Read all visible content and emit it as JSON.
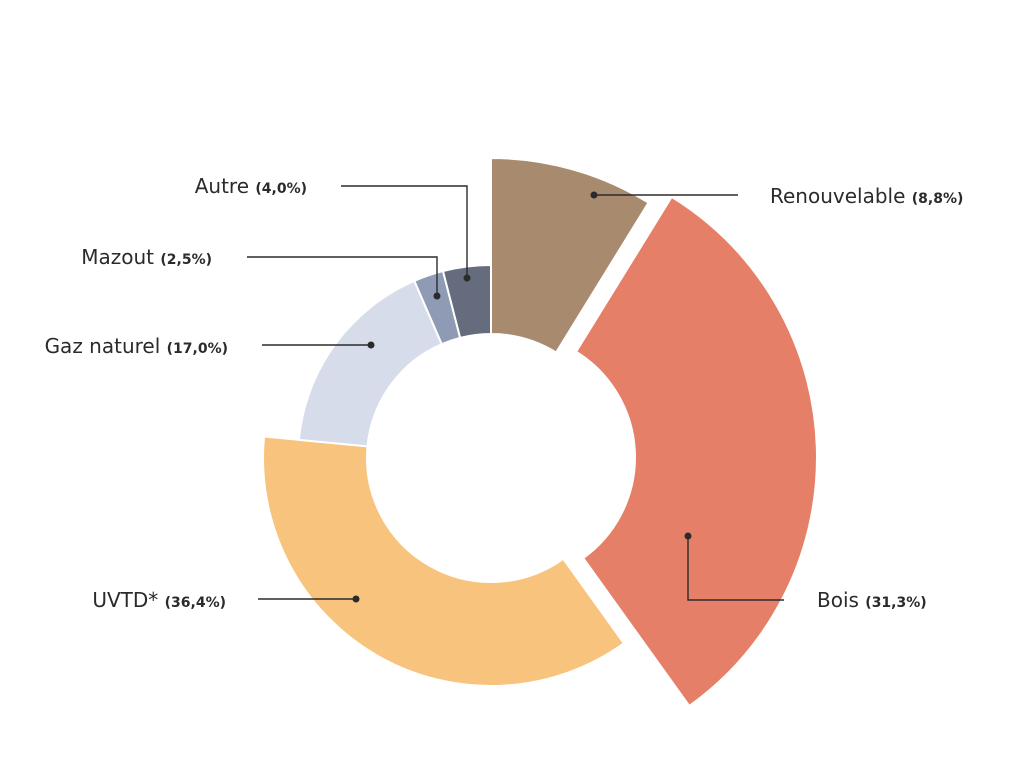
{
  "chart_data": {
    "type": "pie",
    "variant": "donut",
    "title": "",
    "start": "top (12 o'clock)",
    "direction": "clockwise",
    "exploded": [
      "Renouvelable",
      "Bois",
      "UVTD*"
    ],
    "slices": [
      {
        "label": "Renouvelable",
        "value": 8.8,
        "value_label": "(8,8%)",
        "color": "#A88A6F"
      },
      {
        "label": "Bois",
        "value": 31.3,
        "value_label": "(31,3%)",
        "color": "#E67F68"
      },
      {
        "label": "UVTD*",
        "value": 36.4,
        "value_label": "(36,4%)",
        "color": "#F8C37C"
      },
      {
        "label": "Gaz naturel",
        "value": 17.0,
        "value_label": "(17,0%)",
        "color": "#D6DCEA"
      },
      {
        "label": "Mazout",
        "value": 2.5,
        "value_label": "(2,5%)",
        "color": "#8F9AB5"
      },
      {
        "label": "Autre",
        "value": 4.0,
        "value_label": "(4,0%)",
        "color": "#656C7E"
      }
    ]
  }
}
